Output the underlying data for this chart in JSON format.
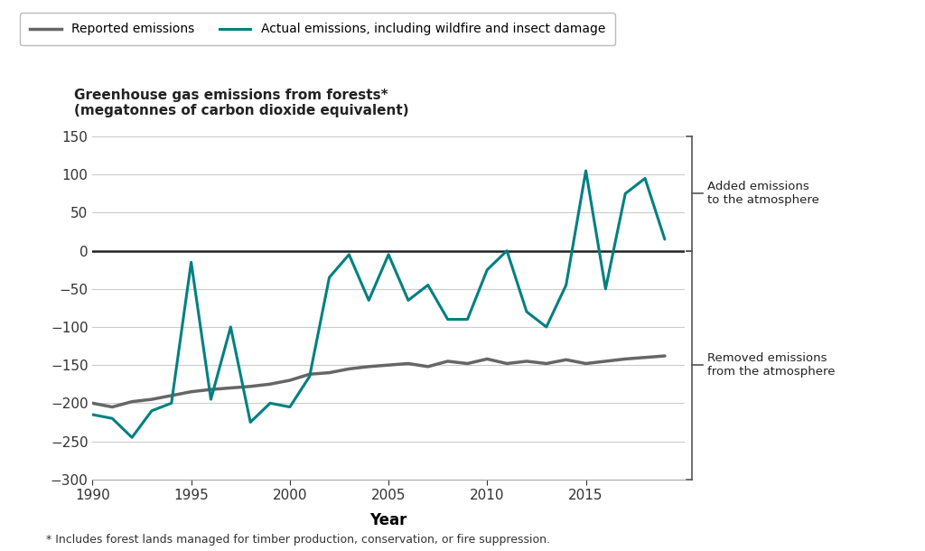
{
  "years": [
    1990,
    1991,
    1992,
    1993,
    1994,
    1995,
    1996,
    1997,
    1998,
    1999,
    2000,
    2001,
    2002,
    2003,
    2004,
    2005,
    2006,
    2007,
    2008,
    2009,
    2010,
    2011,
    2012,
    2013,
    2014,
    2015,
    2016,
    2017,
    2018,
    2019
  ],
  "reported": [
    -200,
    -205,
    -198,
    -195,
    -190,
    -185,
    -182,
    -180,
    -178,
    -175,
    -170,
    -162,
    -160,
    -155,
    -152,
    -150,
    -148,
    -152,
    -145,
    -148,
    -142,
    -148,
    -145,
    -148,
    -143,
    -148,
    -145,
    -142,
    -140,
    -138
  ],
  "actual": [
    -215,
    -220,
    -245,
    -210,
    -200,
    -15,
    -195,
    -100,
    -225,
    -200,
    -205,
    -165,
    -35,
    -5,
    -65,
    -5,
    -65,
    -45,
    -90,
    -90,
    -25,
    0,
    -80,
    -100,
    -45,
    105,
    -50,
    75,
    95,
    15
  ],
  "reported_color": "#666666",
  "actual_color": "#008080",
  "reported_label": "Reported emissions",
  "actual_label": "Actual emissions, including wildfire and insect damage",
  "title_line1": "Greenhouse gas emissions from forests*",
  "title_line2": "(megatonnes of carbon dioxide equivalent)",
  "xlabel": "Year",
  "ylim": [
    -300,
    170
  ],
  "yticks": [
    -300,
    -250,
    -200,
    -150,
    -100,
    -50,
    0,
    50,
    100,
    150
  ],
  "xticks": [
    1990,
    1995,
    2000,
    2005,
    2010,
    2015
  ],
  "annotation_above": "Added emissions\nto the atmosphere",
  "annotation_below": "Removed emissions\nfrom the atmosphere",
  "footnote": "* Includes forest lands managed for timber production, conservation, or fire suppression.",
  "background_color": "#ffffff",
  "grid_color": "#cccccc",
  "zero_line_color": "#222222",
  "reported_linewidth": 2.5,
  "actual_linewidth": 2.2,
  "bracket_color": "#555555",
  "bracket_lw": 1.2
}
